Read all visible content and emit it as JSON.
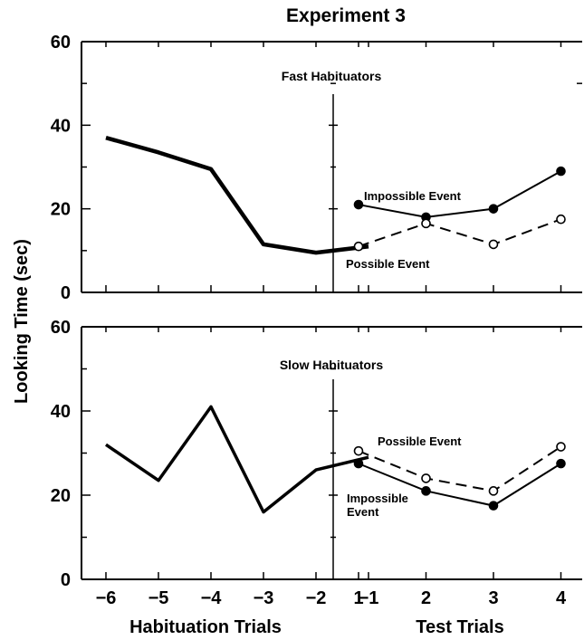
{
  "chart_data": {
    "type": "line",
    "title": "Experiment 3",
    "ylabel": "Looking Time (sec)",
    "ylim": [
      0,
      60
    ],
    "yticks": [
      "0",
      "20",
      "40",
      "60"
    ],
    "habituation": {
      "xlabel": "Habituation Trials",
      "x": [
        -6,
        -5,
        -4,
        -3,
        -2,
        -1
      ],
      "x_labels": [
        "−6",
        "−5",
        "−4",
        "−3",
        "−2",
        "−1"
      ]
    },
    "test": {
      "xlabel": "Test Trials",
      "x": [
        1,
        2,
        3,
        4
      ],
      "x_labels": [
        "1",
        "2",
        "3",
        "4"
      ]
    },
    "panels": [
      {
        "title": "Fast Habituators",
        "habituation_values": [
          37,
          33.5,
          29.5,
          11.5,
          9.5,
          11
        ],
        "test_series": [
          {
            "name": "Impossible Event",
            "style": "solid",
            "marker": "filled",
            "values": [
              21,
              18,
              20,
              29
            ],
            "label_lines": [
              "Impossible Event"
            ]
          },
          {
            "name": "Possible Event",
            "style": "dashed",
            "marker": "open",
            "values": [
              11,
              16.5,
              11.5,
              17.5
            ],
            "label_lines": [
              "Possible Event"
            ]
          }
        ]
      },
      {
        "title": "Slow Habituators",
        "habituation_values": [
          32,
          23.5,
          41,
          16,
          26,
          29
        ],
        "test_series": [
          {
            "name": "Impossible Event",
            "style": "solid",
            "marker": "filled",
            "values": [
              27.5,
              21,
              17.5,
              27.5
            ],
            "label_lines": [
              "Impossible",
              "Event"
            ]
          },
          {
            "name": "Possible Event",
            "style": "dashed",
            "marker": "open",
            "values": [
              30.5,
              24,
              21,
              31.5
            ],
            "label_lines": [
              "Possible Event"
            ]
          }
        ]
      }
    ]
  }
}
